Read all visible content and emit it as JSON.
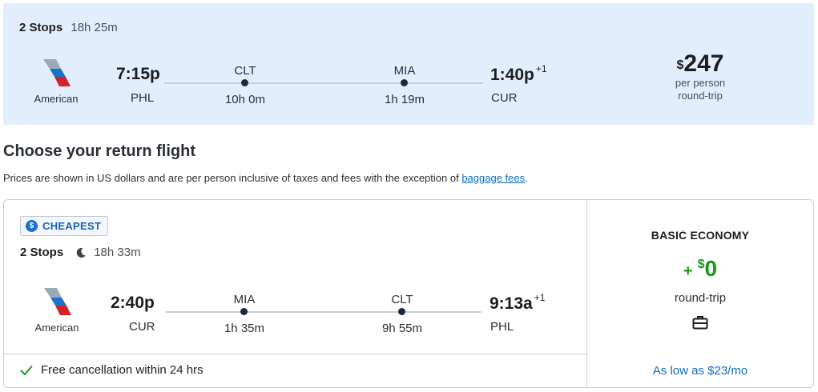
{
  "outbound": {
    "stops": "2 Stops",
    "duration": "18h 25m",
    "airline": "American",
    "depart_time": "7:15p",
    "depart_code": "PHL",
    "arrive_time": "1:40p",
    "arrive_day_offset": "+1",
    "arrive_code": "CUR",
    "layovers": [
      {
        "code": "CLT",
        "duration": "10h 0m"
      },
      {
        "code": "MIA",
        "duration": "1h 19m"
      }
    ],
    "price_currency": "$",
    "price": "247",
    "price_note_1": "per person",
    "price_note_2": "round-trip"
  },
  "heading": "Choose your return flight",
  "note": {
    "text": "Prices are shown in US dollars and are per person inclusive of taxes and fees with the exception of ",
    "link": "baggage fees",
    "suffix": "."
  },
  "return": {
    "badge": "CHEAPEST",
    "stops": "2 Stops",
    "duration": "18h 33m",
    "airline": "American",
    "depart_time": "2:40p",
    "depart_code": "CUR",
    "arrive_time": "9:13a",
    "arrive_day_offset": "+1",
    "arrive_code": "PHL",
    "layovers": [
      {
        "code": "MIA",
        "duration": "1h 35m"
      },
      {
        "code": "CLT",
        "duration": "9h 55m"
      }
    ],
    "free_cancel": "Free cancellation within 24 hrs",
    "fare_class": "BASIC ECONOMY",
    "fare_plus": "+",
    "fare_currency": "$",
    "fare_amount": "0",
    "fare_note": "round-trip",
    "low_as": "As low as $23/mo"
  },
  "colors": {
    "summary_bg": "#e3eefc",
    "accent_blue": "#0f6cc2",
    "price_green": "#1a9a1a"
  },
  "icons": [
    "american-airlines-logo",
    "dollar-badge-icon",
    "moon-icon",
    "check-icon",
    "briefcase-icon"
  ]
}
